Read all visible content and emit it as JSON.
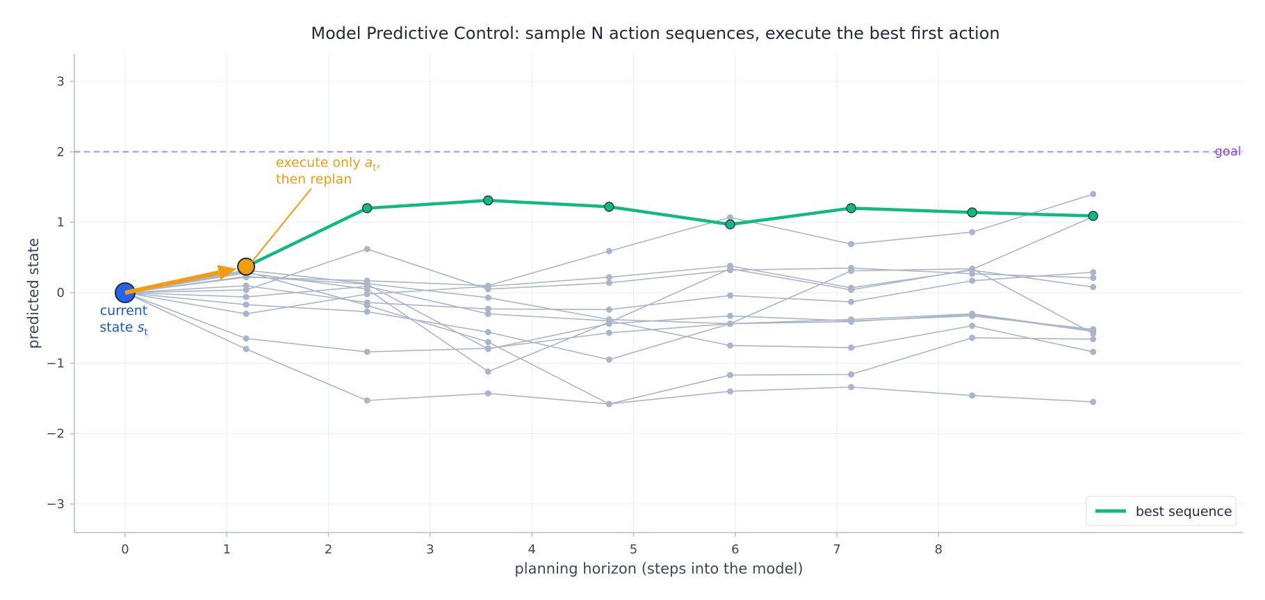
{
  "chart_data": {
    "type": "line",
    "title": "Model Predictive Control:  sample N action sequences, execute the best first action",
    "xlabel": "planning horizon (steps into the model)",
    "ylabel": "predicted state",
    "xlim": [
      -0.5,
      11.0
    ],
    "ylim": [
      -3.4,
      3.4
    ],
    "xticks": [
      "0",
      "1",
      "2",
      "3",
      "4",
      "5",
      "6",
      "7",
      "8"
    ],
    "yticks": [
      "−3",
      "−2",
      "−1",
      "0",
      "1",
      "2",
      "3"
    ],
    "grid": true,
    "x": [
      0,
      1.19,
      2.38,
      3.57,
      4.76,
      5.95,
      7.14,
      8.33,
      9.52
    ],
    "samples": [
      [
        0,
        -0.8,
        -1.53,
        -1.43,
        -1.58,
        -1.4,
        -1.34,
        -1.46,
        -1.55
      ],
      [
        0,
        -0.65,
        -0.84,
        -0.79,
        -0.57,
        -0.44,
        -0.41,
        -0.31,
        -0.55
      ],
      [
        0,
        -0.3,
        -0.02,
        0.09,
        0.22,
        0.38,
        0.07,
        0.32,
        0.08
      ],
      [
        0,
        -0.17,
        -0.27,
        -0.56,
        -0.95,
        -0.44,
        0.31,
        0.34,
        -0.58
      ],
      [
        0,
        0.04,
        0.62,
        0.05,
        0.14,
        0.32,
        0.35,
        0.27,
        0.21
      ],
      [
        0,
        0.22,
        0.17,
        0.1,
        0.59,
        1.07,
        0.69,
        0.86,
        1.4
      ],
      [
        0,
        0.1,
        -0.14,
        -0.23,
        -0.24,
        -0.04,
        -0.13,
        0.17,
        0.29
      ],
      [
        0,
        -0.06,
        0.09,
        -0.3,
        -0.4,
        -0.75,
        -0.78,
        -0.47,
        -0.84
      ],
      [
        0,
        0.23,
        0.12,
        -0.8,
        -0.44,
        -0.33,
        -0.4,
        -0.33,
        -0.52
      ],
      [
        0,
        0.28,
        0.05,
        -1.12,
        -0.42,
        0.34,
        0.04,
        0.33,
        1.08
      ],
      [
        0,
        0.3,
        -0.18,
        -0.7,
        -1.58,
        -1.17,
        -1.16,
        -0.64,
        -0.66
      ],
      [
        0,
        0.32,
        0.13,
        -0.07,
        -0.38,
        -0.44,
        -0.38,
        -0.3,
        -0.54
      ]
    ],
    "best_sequence": {
      "name": "best sequence",
      "values": [
        0,
        0.37,
        1.2,
        1.31,
        1.22,
        0.97,
        1.2,
        1.14,
        1.09
      ]
    },
    "goal": {
      "y": 2.0,
      "label": "goal"
    },
    "annotations": {
      "execute_line1_prefix": "execute only ",
      "execute_line1_var": "a",
      "execute_line1_sub": "t",
      "execute_line1_suffix": ",",
      "execute_line2": "then replan",
      "current_line1": "current",
      "current_line2_prefix": "state ",
      "current_line2_var": "s",
      "current_line2_sub": "t"
    },
    "legend": {
      "placement": "bottom-right",
      "entries": [
        "best sequence"
      ]
    },
    "colors": {
      "samples": "#aab5c8",
      "best": "#10b981",
      "current_state": "#2563eb",
      "executed": "#f39c12",
      "goal": "#a78bfa",
      "goal_text": "#8a3ffc",
      "grid": "#e9edf2",
      "axis": "#b5bfd0"
    }
  }
}
